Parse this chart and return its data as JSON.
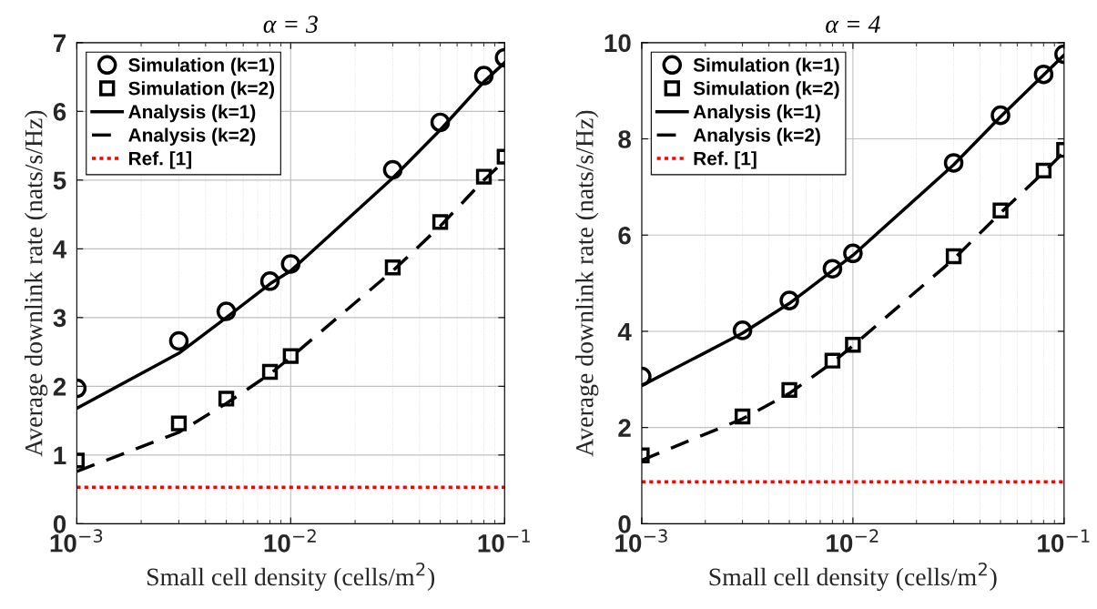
{
  "chart_data": [
    {
      "type": "line",
      "title": "α = 3",
      "xlabel": "Small cell density (cells/m$^{2}$)",
      "ylabel": "Average downlink rate (nats/s/Hz)",
      "log": "x",
      "grid": true,
      "legend": "top left",
      "x": [
        0.001,
        0.003,
        0.005,
        0.008,
        0.01,
        0.03,
        0.05,
        0.08,
        0.1
      ],
      "xlim": [
        0.001,
        0.1
      ],
      "xticks": [
        {
          "value": 0.001,
          "label": "10$^{−3}$"
        },
        {
          "value": 0.01,
          "label": "10$^{−2}$"
        },
        {
          "value": 0.1,
          "label": "10$^{−1}$"
        }
      ],
      "ylim": [
        0,
        7
      ],
      "yticks": [
        0,
        1,
        2,
        3,
        4,
        5,
        6,
        7
      ],
      "series": [
        {
          "name": "Simulation (k=1)",
          "type": "scatter",
          "marker": "circle",
          "color": "#000000",
          "values": [
            1.97,
            2.66,
            3.09,
            3.53,
            3.78,
            5.15,
            5.84,
            6.52,
            6.78
          ]
        },
        {
          "name": "Simulation (k=2)",
          "type": "scatter",
          "marker": "square",
          "color": "#000000",
          "values": [
            0.92,
            1.46,
            1.82,
            2.21,
            2.44,
            3.73,
            4.39,
            5.05,
            5.34
          ]
        },
        {
          "name": "Analysis (k=1)",
          "type": "line",
          "line_style": "solid",
          "color": "#000000",
          "values": [
            1.68,
            2.48,
            3.0,
            3.49,
            3.68,
            5.03,
            5.73,
            6.43,
            6.71
          ]
        },
        {
          "name": "Analysis (k=2)",
          "type": "line",
          "line_style": "dashed",
          "color": "#000000",
          "values": [
            0.76,
            1.33,
            1.75,
            2.18,
            2.42,
            3.68,
            4.33,
            5.0,
            5.28
          ]
        },
        {
          "name": "Ref. [1]",
          "type": "line",
          "line_style": "dotted",
          "color": "#ff0000",
          "values": [
            0.53,
            0.53,
            0.53,
            0.53,
            0.53,
            0.53,
            0.53,
            0.53,
            0.53
          ]
        }
      ]
    },
    {
      "type": "line",
      "title": "α = 4",
      "xlabel": "Small cell density (cells/m$^{2}$)",
      "ylabel": "Average downlink rate (nats/s/Hz)",
      "log": "x",
      "grid": true,
      "legend": "top left",
      "x": [
        0.001,
        0.003,
        0.005,
        0.008,
        0.01,
        0.03,
        0.05,
        0.08,
        0.1
      ],
      "xlim": [
        0.001,
        0.1
      ],
      "xticks": [
        {
          "value": 0.001,
          "label": "10$^{−3}$"
        },
        {
          "value": 0.01,
          "label": "10$^{−2}$"
        },
        {
          "value": 0.1,
          "label": "10$^{−1}$"
        }
      ],
      "ylim": [
        0,
        10
      ],
      "yticks": [
        0,
        2,
        4,
        6,
        8,
        10
      ],
      "series": [
        {
          "name": "Simulation (k=1)",
          "type": "scatter",
          "marker": "circle",
          "color": "#000000",
          "values": [
            3.06,
            4.02,
            4.64,
            5.3,
            5.62,
            7.5,
            8.49,
            9.34,
            9.76
          ]
        },
        {
          "name": "Simulation (k=2)",
          "type": "scatter",
          "marker": "square",
          "color": "#000000",
          "values": [
            1.42,
            2.23,
            2.78,
            3.39,
            3.72,
            5.56,
            6.51,
            7.34,
            7.77
          ]
        },
        {
          "name": "Analysis (k=1)",
          "type": "line",
          "line_style": "solid",
          "color": "#000000",
          "values": [
            2.87,
            3.96,
            4.58,
            5.26,
            5.58,
            7.46,
            8.46,
            9.33,
            9.74
          ]
        },
        {
          "name": "Analysis (k=2)",
          "type": "line",
          "line_style": "dashed",
          "color": "#000000",
          "values": [
            1.32,
            2.18,
            2.71,
            3.35,
            3.7,
            5.5,
            6.46,
            7.3,
            7.73
          ]
        },
        {
          "name": "Ref. [1]",
          "type": "line",
          "line_style": "dotted",
          "color": "#ff0000",
          "values": [
            0.87,
            0.87,
            0.87,
            0.87,
            0.87,
            0.87,
            0.87,
            0.87,
            0.87
          ]
        }
      ]
    }
  ]
}
